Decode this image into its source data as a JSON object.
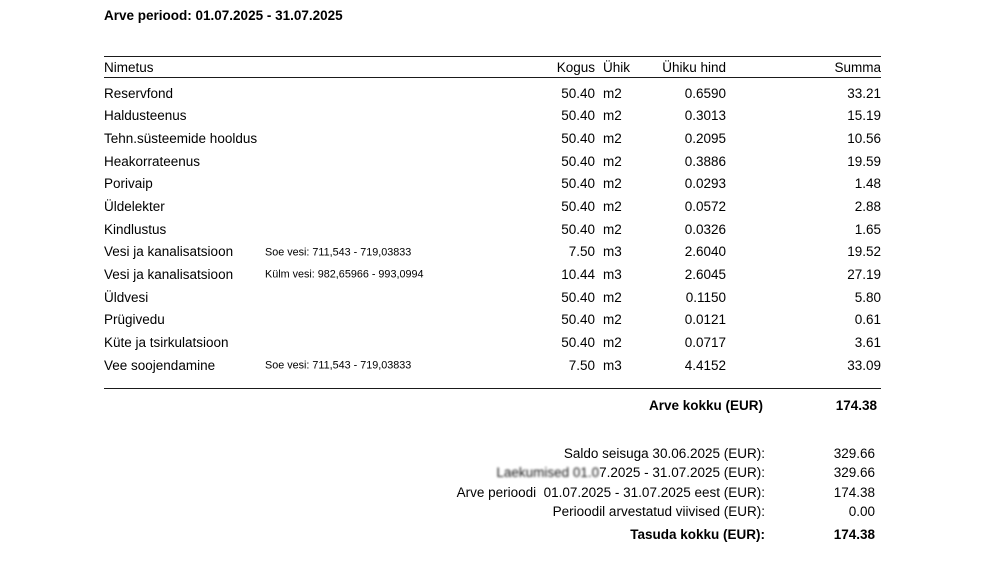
{
  "invoice": {
    "period_title": "Arve periood: 01.07.2025 - 31.07.2025",
    "table": {
      "headers": {
        "name": "Nimetus",
        "qty": "Kogus",
        "unit": "Ühik",
        "unit_price": "Ühiku hind",
        "sum": "Summa"
      },
      "rows": [
        {
          "name": "Reservfond",
          "note": "",
          "qty": "50.40",
          "unit": "m2",
          "unit_price": "0.6590",
          "sum": "33.21"
        },
        {
          "name": "Haldusteenus",
          "note": "",
          "qty": "50.40",
          "unit": "m2",
          "unit_price": "0.3013",
          "sum": "15.19"
        },
        {
          "name": "Tehn.süsteemide hooldus",
          "note": "",
          "qty": "50.40",
          "unit": "m2",
          "unit_price": "0.2095",
          "sum": "10.56"
        },
        {
          "name": "Heakorrateenus",
          "note": "",
          "qty": "50.40",
          "unit": "m2",
          "unit_price": "0.3886",
          "sum": "19.59"
        },
        {
          "name": "Porivaip",
          "note": "",
          "qty": "50.40",
          "unit": "m2",
          "unit_price": "0.0293",
          "sum": "1.48"
        },
        {
          "name": "Üldelekter",
          "note": "",
          "qty": "50.40",
          "unit": "m2",
          "unit_price": "0.0572",
          "sum": "2.88"
        },
        {
          "name": "Kindlustus",
          "note": "",
          "qty": "50.40",
          "unit": "m2",
          "unit_price": "0.0326",
          "sum": "1.65"
        },
        {
          "name": "Vesi ja kanalisatsioon",
          "note": "Soe vesi: 711,543 - 719,03833",
          "qty": "7.50",
          "unit": "m3",
          "unit_price": "2.6040",
          "sum": "19.52"
        },
        {
          "name": "Vesi ja kanalisatsioon",
          "note": "Külm vesi: 982,65966 - 993,0994",
          "qty": "10.44",
          "unit": "m3",
          "unit_price": "2.6045",
          "sum": "27.19"
        },
        {
          "name": "Üldvesi",
          "note": "",
          "qty": "50.40",
          "unit": "m2",
          "unit_price": "0.1150",
          "sum": "5.80"
        },
        {
          "name": "Prügivedu",
          "note": "",
          "qty": "50.40",
          "unit": "m2",
          "unit_price": "0.0121",
          "sum": "0.61"
        },
        {
          "name": "Küte ja tsirkulatsioon",
          "note": "",
          "qty": "50.40",
          "unit": "m2",
          "unit_price": "0.0717",
          "sum": "3.61"
        },
        {
          "name": "Vee soojendamine",
          "note": "Soe vesi: 711,543 - 719,03833",
          "qty": "7.50",
          "unit": "m3",
          "unit_price": "4.4152",
          "sum": "33.09"
        }
      ],
      "total_label": "Arve kokku (EUR)",
      "total_value": "174.38"
    },
    "summary": {
      "lines": [
        {
          "label": "Saldo seisuga 30.06.2025 (EUR):",
          "label_blurred": "",
          "value": "329.66"
        },
        {
          "label": "7.2025 - 31.07.2025 (EUR):",
          "label_blurred": "Laekumised 01.0",
          "value": "329.66"
        },
        {
          "label": "Arve perioodi  01.07.2025 - 31.07.2025 eest (EUR):",
          "label_blurred": "",
          "value": "174.38"
        },
        {
          "label": "Perioodil arvestatud viivised (EUR):",
          "label_blurred": "",
          "value": "0.00"
        }
      ],
      "total_label": "Tasuda kokku (EUR):",
      "total_value": "174.38"
    }
  }
}
